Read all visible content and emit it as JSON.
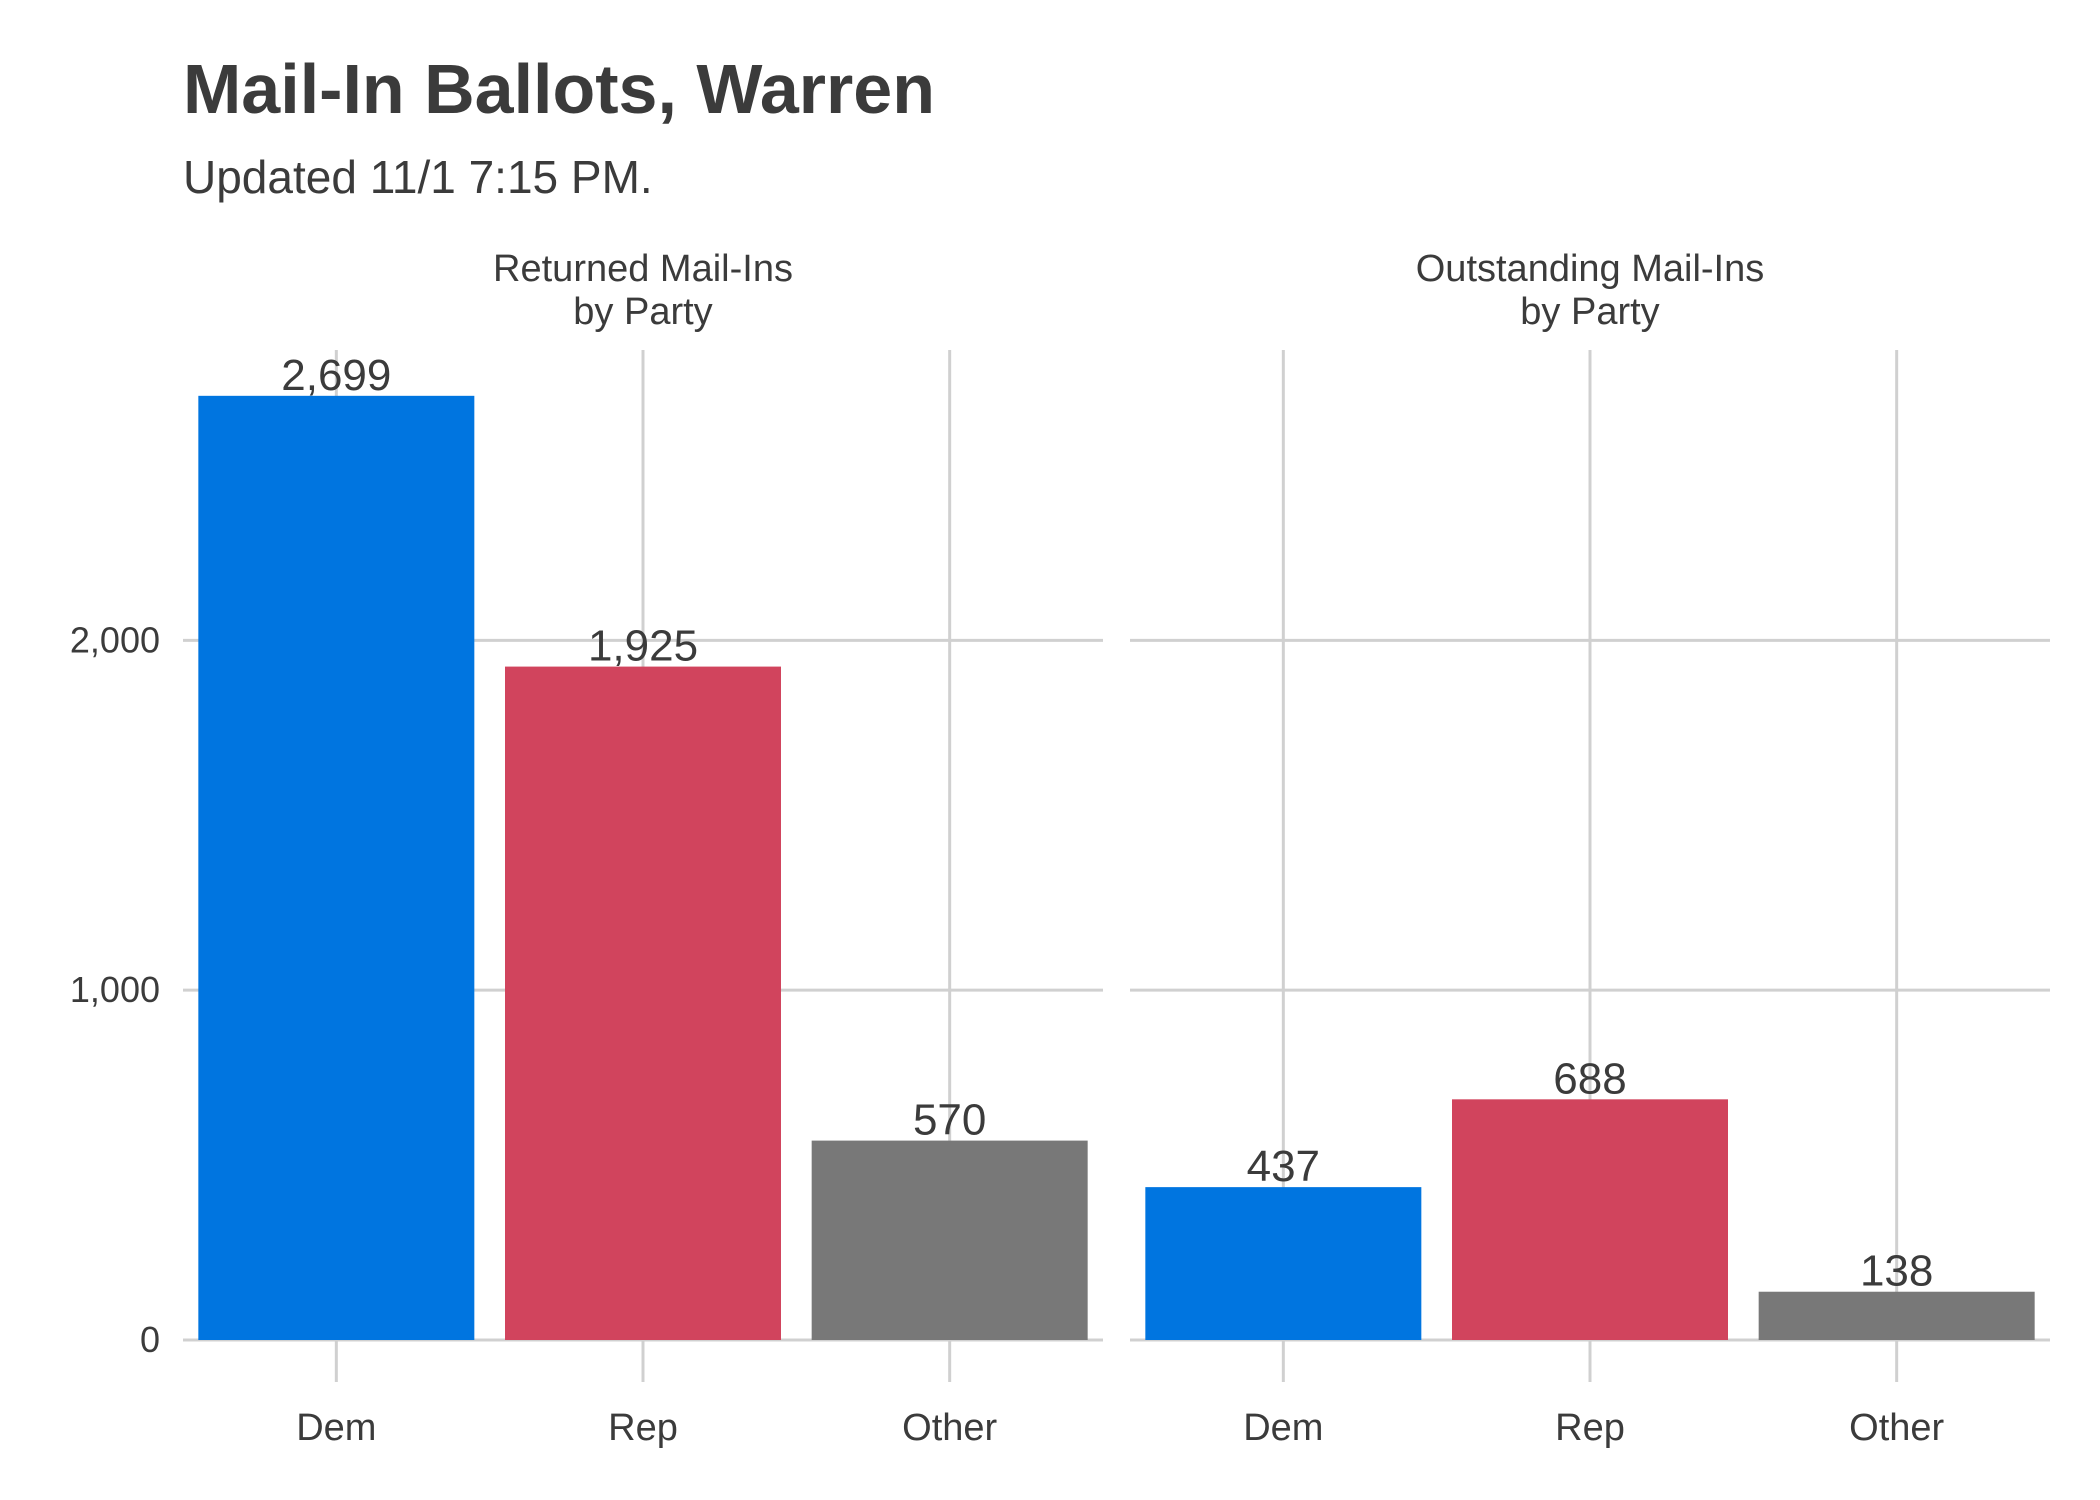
{
  "chart_data": {
    "type": "bar",
    "title": "Mail-In Ballots, Warren",
    "subtitle": "Updated 11/1 7:15 PM.",
    "xlabel": "",
    "ylabel": "",
    "ylim": [
      0,
      2830
    ],
    "y_ticks": [
      0,
      1000,
      2000
    ],
    "y_tick_labels": [
      "0",
      "1,000",
      "2,000"
    ],
    "grid": true,
    "legend": "none",
    "colors": {
      "Dem": "#0075E0",
      "Rep": "#D1445D",
      "Other": "#787878"
    },
    "panels": [
      {
        "title_lines": [
          "Returned Mail-Ins",
          "by Party"
        ],
        "categories": [
          "Dem",
          "Rep",
          "Other"
        ],
        "values": [
          2699,
          1925,
          570
        ],
        "value_labels": [
          "2,699",
          "1,925",
          "570"
        ]
      },
      {
        "title_lines": [
          "Outstanding Mail-Ins",
          "by Party"
        ],
        "categories": [
          "Dem",
          "Rep",
          "Other"
        ],
        "values": [
          437,
          688,
          138
        ],
        "value_labels": [
          "437",
          "688",
          "138"
        ]
      }
    ]
  }
}
